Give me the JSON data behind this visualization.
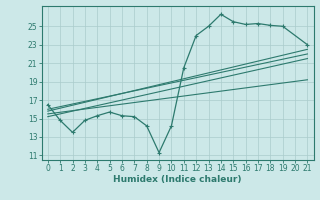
{
  "bg_color": "#cce8e8",
  "grid_color": "#aacccc",
  "line_color": "#2d7a6e",
  "xlabel": "Humidex (Indice chaleur)",
  "xlim": [
    -0.5,
    21.5
  ],
  "ylim": [
    10.5,
    27.2
  ],
  "xticks": [
    0,
    1,
    2,
    3,
    4,
    5,
    6,
    7,
    8,
    9,
    10,
    11,
    12,
    13,
    14,
    15,
    16,
    17,
    18,
    19,
    20,
    21
  ],
  "yticks": [
    11,
    13,
    15,
    17,
    19,
    21,
    23,
    25
  ],
  "line1_x": [
    0,
    1,
    2,
    3,
    4,
    5,
    6,
    7,
    8,
    9,
    10,
    11,
    12,
    13,
    14,
    15,
    16,
    17,
    18,
    19,
    21
  ],
  "line1_y": [
    16.5,
    14.8,
    13.5,
    14.8,
    15.3,
    15.7,
    15.3,
    15.2,
    14.2,
    11.3,
    14.2,
    20.5,
    24.0,
    25.0,
    26.3,
    25.5,
    25.2,
    25.3,
    25.1,
    25.0,
    23.0
  ],
  "line2_x": [
    0,
    21
  ],
  "line2_y": [
    15.5,
    19.2
  ],
  "line3_x": [
    0,
    21
  ],
  "line3_y": [
    15.8,
    22.5
  ],
  "line4_x": [
    0,
    21
  ],
  "line4_y": [
    16.0,
    22.0
  ],
  "line5_x": [
    0,
    21
  ],
  "line5_y": [
    15.2,
    21.5
  ],
  "marker": "+"
}
